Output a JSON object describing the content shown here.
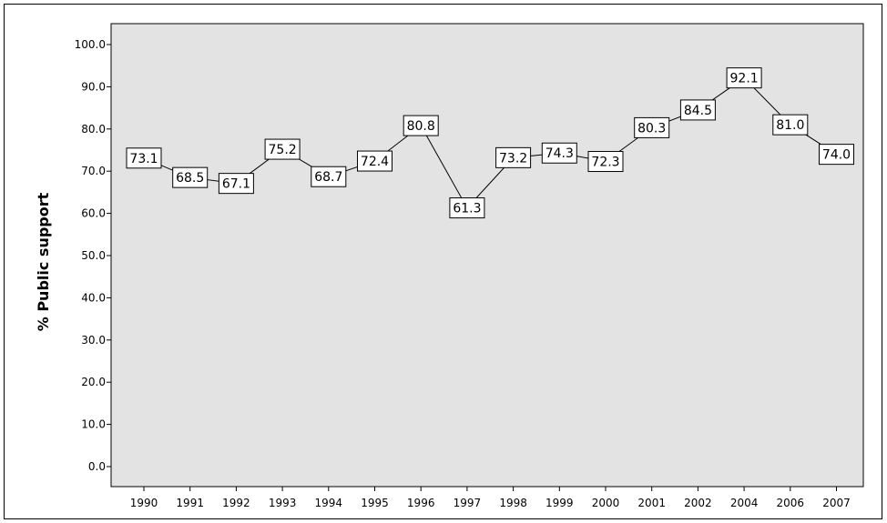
{
  "chart_data": {
    "type": "line",
    "title": "",
    "xlabel": "",
    "ylabel": "% Public support",
    "categories": [
      "1990",
      "1991",
      "1992",
      "1993",
      "1994",
      "1995",
      "1996",
      "1997",
      "1998",
      "1999",
      "2000",
      "2001",
      "2002",
      "2004",
      "2006",
      "2007"
    ],
    "values": [
      73.1,
      68.5,
      67.1,
      75.2,
      68.7,
      72.4,
      80.8,
      61.3,
      73.2,
      74.3,
      72.3,
      80.3,
      84.5,
      92.1,
      81.0,
      74.0
    ],
    "value_labels": [
      "73.1",
      "68.5",
      "67.1",
      "75.2",
      "68.7",
      "72.4",
      "80.8",
      "61.3",
      "73.2",
      "74.3",
      "72.3",
      "80.3",
      "84.5",
      "92.1",
      "81.0",
      "74.0"
    ],
    "ylim": [
      0,
      100
    ],
    "yticks": [
      0,
      10,
      20,
      30,
      40,
      50,
      60,
      70,
      80,
      90,
      100
    ],
    "ytick_labels": [
      "0.0",
      "10.0",
      "20.0",
      "30.0",
      "40.0",
      "50.0",
      "60.0",
      "70.0",
      "80.0",
      "90.0",
      "100.0"
    ],
    "grid": false,
    "colors": {
      "plot_background": "#e3e3e3",
      "line": "#000000",
      "label_box": "#ffffff"
    }
  }
}
